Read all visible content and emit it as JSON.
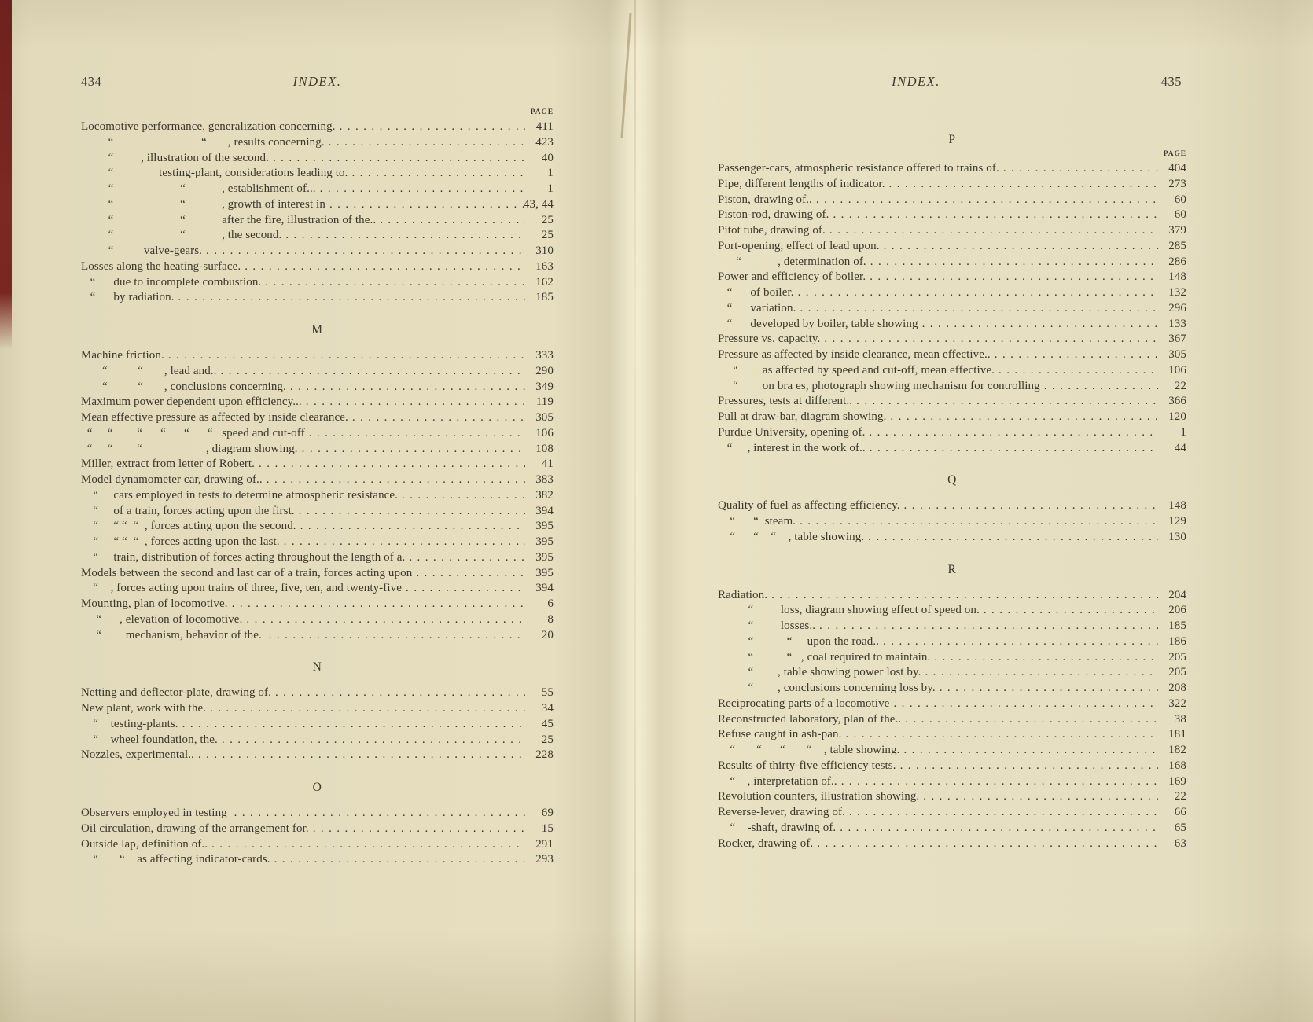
{
  "colors": {
    "paper": "#e6dec0",
    "ink": "#3b382e",
    "binding_red": "#7c2823"
  },
  "left_page": {
    "page_number": "434",
    "header": "INDEX.",
    "sections": [
      {
        "heading": "",
        "page_label": "PAGE",
        "entries": [
          {
            "t": "Locomotive performance, generalization concerning.",
            "p": "411"
          },
          {
            "t": "         “                             “       , results concerning.",
            "p": "423"
          },
          {
            "t": "         “         , illustration of the second.",
            "p": "40"
          },
          {
            "t": "         “               testing-plant, considerations leading to.",
            "p": "1"
          },
          {
            "t": "         “                      “            , establishment of...",
            "p": "1"
          },
          {
            "t": "         “                      “            , growth of interest in",
            "p": "43, 44"
          },
          {
            "t": "         “                      “            after the fire, illustration of the..",
            "p": "25"
          },
          {
            "t": "         “                      “            , the second.",
            "p": "25"
          },
          {
            "t": "         “          valve-gears.",
            "p": "310"
          },
          {
            "t": "Losses along the heating-surface.",
            "p": "163"
          },
          {
            "t": "   “      due to incomplete combustion.",
            "p": "162"
          },
          {
            "t": "   “      by radiation.",
            "p": "185"
          }
        ]
      },
      {
        "heading": "M",
        "entries": [
          {
            "t": "Machine friction.",
            "p": "333"
          },
          {
            "t": "       “          “       , lead and..",
            "p": "290"
          },
          {
            "t": "       “          “       , conclusions concerning.",
            "p": "349"
          },
          {
            "t": "Maximum power dependent upon efficiency...",
            "p": "119"
          },
          {
            "t": "Mean effective pressure as affected by inside clearance.",
            "p": "305"
          },
          {
            "t": "  “     “        “      “      “      “   speed and cut-off",
            "p": "106"
          },
          {
            "t": "  “     “        “                     , diagram showing.",
            "p": "108"
          },
          {
            "t": "Miller, extract from letter of Robert.",
            "p": "41"
          },
          {
            "t": "Model dynamometer car, drawing of..",
            "p": "383"
          },
          {
            "t": "    “     cars employed in tests to determine atmospheric resistance.",
            "p": "382"
          },
          {
            "t": "    “     of a train, forces acting upon the first.",
            "p": "394"
          },
          {
            "t": "    “     “ “  “  , forces acting upon the second.",
            "p": "395"
          },
          {
            "t": "    “     “ “  “  , forces acting upon the last.",
            "p": "395"
          },
          {
            "t": "    “     train, distribution of forces acting throughout the length of a.",
            "p": "395"
          },
          {
            "t": "Models between the second and last car of a train, forces acting upon",
            "p": "395"
          },
          {
            "t": "    “    , forces acting upon trains of three, five, ten, and twenty-five",
            "p": "394"
          },
          {
            "t": "Mounting, plan of locomotive.",
            "p": "6"
          },
          {
            "t": "     “      , elevation of locomotive.",
            "p": "8"
          },
          {
            "t": "     “        mechanism, behavior of the. ",
            "p": "20"
          }
        ]
      },
      {
        "heading": "N",
        "entries": [
          {
            "t": "Netting and deflector-plate, drawing of.",
            "p": "55"
          },
          {
            "t": "New plant, work with the.",
            "p": "34"
          },
          {
            "t": "    “    testing-plants.",
            "p": "45"
          },
          {
            "t": "    “    wheel foundation, the.",
            "p": "25"
          },
          {
            "t": "Nozzles, experimental..",
            "p": "228"
          }
        ]
      },
      {
        "heading": "O",
        "entries": [
          {
            "t": "Observers employed in testing ",
            "p": "69"
          },
          {
            "t": "Oil circulation, drawing of the arrangement for.",
            "p": "15"
          },
          {
            "t": "Outside lap, definition of..",
            "p": "291"
          },
          {
            "t": "    “       “    as affecting indicator-cards.",
            "p": "293"
          }
        ]
      }
    ]
  },
  "right_page": {
    "page_number": "435",
    "header": "INDEX.",
    "sections": [
      {
        "heading": "P",
        "page_label": "PAGE",
        "entries": [
          {
            "t": "Passenger-cars, atmospheric resistance offered to trains of.",
            "p": "404"
          },
          {
            "t": "Pipe, different lengths of indicator.",
            "p": "273"
          },
          {
            "t": "Piston, drawing of..",
            "p": "60"
          },
          {
            "t": "Piston-rod, drawing of.",
            "p": "60"
          },
          {
            "t": "Pitot tube, drawing of.",
            "p": "379"
          },
          {
            "t": "Port-opening, effect of lead upon.",
            "p": "285"
          },
          {
            "t": "      “            , determination of.",
            "p": "286"
          },
          {
            "t": "Power and efficiency of boiler.",
            "p": "148"
          },
          {
            "t": "   “      of boiler.",
            "p": "132"
          },
          {
            "t": "   “      variation.",
            "p": "296"
          },
          {
            "t": "   “      developed by boiler, table showing",
            "p": "133"
          },
          {
            "t": "Pressure vs. capacity.",
            "p": "367"
          },
          {
            "t": "Pressure as affected by inside clearance, mean effective..",
            "p": "305"
          },
          {
            "t": "     “        as affected by speed and cut-off, mean effective.",
            "p": "106"
          },
          {
            "t": "     “        on bra es, photograph showing mechanism for controlling",
            "p": "22"
          },
          {
            "t": "Pressures, tests at different..",
            "p": "366"
          },
          {
            "t": "Pull at draw-bar, diagram showing.",
            "p": "120"
          },
          {
            "t": "Purdue University, opening of.",
            "p": "1"
          },
          {
            "t": "   “     , interest in the work of..",
            "p": "44"
          }
        ]
      },
      {
        "heading": "Q",
        "entries": [
          {
            "t": "Quality of fuel as affecting efficiency.",
            "p": "148"
          },
          {
            "t": "    “      “  steam.",
            "p": "129"
          },
          {
            "t": "    “      “    “    , table showing.",
            "p": "130"
          }
        ]
      },
      {
        "heading": "R",
        "entries": [
          {
            "t": "Radiation.",
            "p": "204"
          },
          {
            "t": "          “         loss, diagram showing effect of speed on.",
            "p": "206"
          },
          {
            "t": "          “         losses..",
            "p": "185"
          },
          {
            "t": "          “           “     upon the road..",
            "p": "186"
          },
          {
            "t": "          “           “   , coal required to maintain.",
            "p": "205"
          },
          {
            "t": "          “        , table showing power lost by.",
            "p": "205"
          },
          {
            "t": "          “        , conclusions concerning loss by.",
            "p": "208"
          },
          {
            "t": "Reciprocating parts of a locomotive",
            "p": "322"
          },
          {
            "t": "Reconstructed laboratory, plan of the..",
            "p": "38"
          },
          {
            "t": "Refuse caught in ash-pan.",
            "p": "181"
          },
          {
            "t": "    “       “      “       “    , table showing.",
            "p": "182"
          },
          {
            "t": "Results of thirty-five efficiency tests.",
            "p": "168"
          },
          {
            "t": "    “    , interpretation of..",
            "p": "169"
          },
          {
            "t": "Revolution counters, illustration showing.",
            "p": "22"
          },
          {
            "t": "Reverse-lever, drawing of.",
            "p": "66"
          },
          {
            "t": "    “    -shaft, drawing of.",
            "p": "65"
          },
          {
            "t": "Rocker, drawing of.",
            "p": "63"
          }
        ]
      }
    ]
  }
}
